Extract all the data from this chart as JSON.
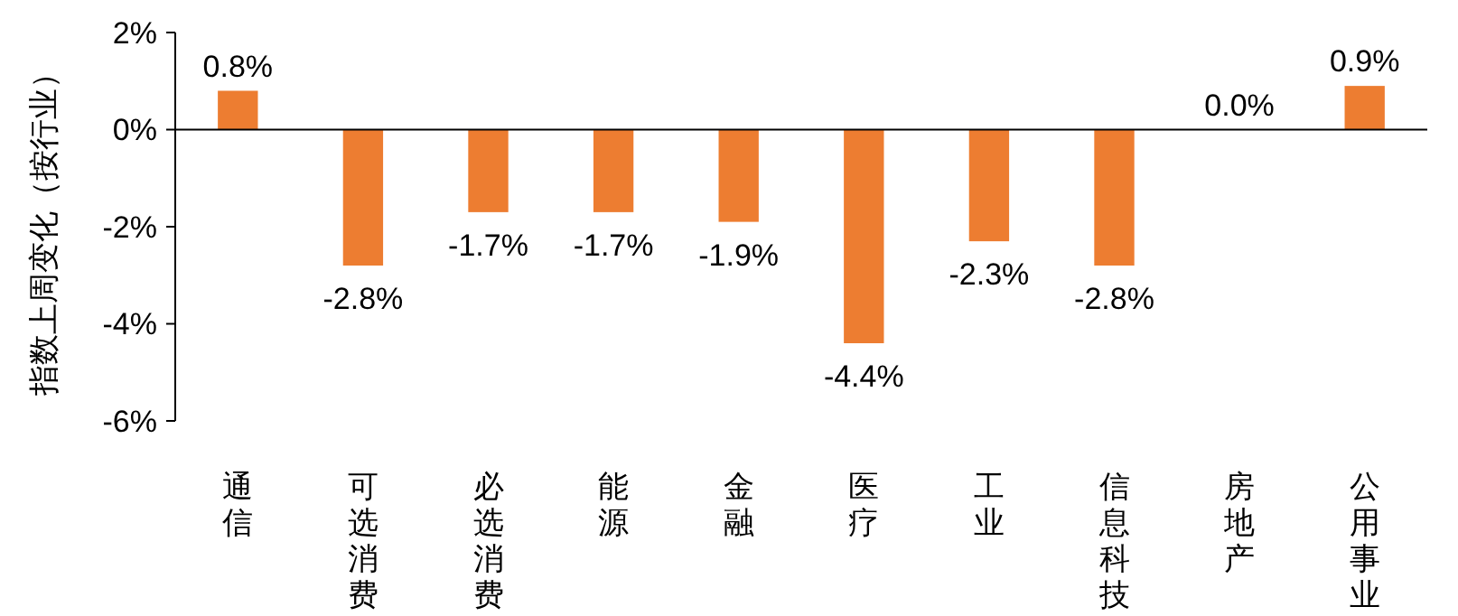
{
  "chart_data": {
    "type": "bar",
    "ylabel": "指数上周变化（按行业）",
    "categories": [
      "通信",
      "可选消费",
      "必选消费",
      "能源",
      "金融",
      "医疗",
      "工业",
      "信息科技",
      "房地产",
      "公用事业"
    ],
    "values": [
      0.8,
      -2.8,
      -1.7,
      -1.7,
      -1.9,
      -4.4,
      -2.3,
      -2.8,
      0.0,
      0.9
    ],
    "value_labels": [
      "0.8%",
      "-2.8%",
      "-1.7%",
      "-1.7%",
      "-1.9%",
      "-4.4%",
      "-2.3%",
      "-2.8%",
      "0.0%",
      "0.9%"
    ],
    "color": "#ed7d31",
    "ylim": [
      -6,
      2
    ],
    "yticks": [
      {
        "value": 2,
        "label": "2%"
      },
      {
        "value": 0,
        "label": "0%"
      },
      {
        "value": -2,
        "label": "-2%"
      },
      {
        "value": -4,
        "label": "-4%"
      },
      {
        "value": -6,
        "label": "-6%"
      }
    ],
    "data_labels": false
  }
}
